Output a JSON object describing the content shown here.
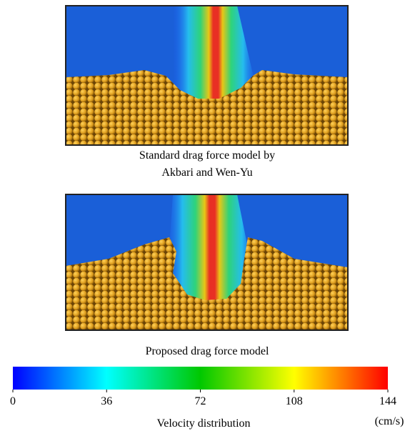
{
  "panels": [
    {
      "caption": [
        "Standard drag force model by",
        "Akbari and Wen-Yu"
      ]
    },
    {
      "caption": [
        "Proposed drag force model"
      ]
    }
  ],
  "colorbar": {
    "lim": [
      0,
      144
    ],
    "ticks": [
      0,
      36,
      72,
      108,
      144
    ],
    "label": "Velocity distribution",
    "unit": "(cm/s)"
  }
}
